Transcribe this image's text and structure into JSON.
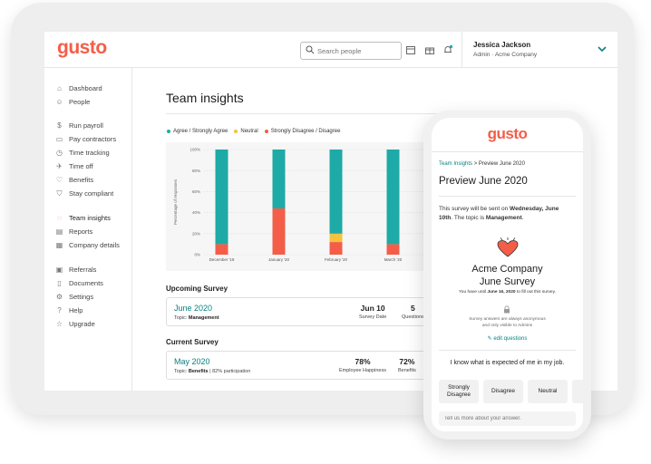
{
  "app": {
    "logo": "gusto",
    "search": {
      "placeholder": "Search people"
    },
    "user": {
      "name": "Jessica Jackson",
      "subtitle": "Admin · Acme Company"
    }
  },
  "sidebar": {
    "items": [
      {
        "label": "Dashboard",
        "icon": "home-icon"
      },
      {
        "label": "People",
        "icon": "people-icon"
      },
      {
        "label": "Run payroll",
        "icon": "dollar-icon"
      },
      {
        "label": "Pay contractors",
        "icon": "card-icon"
      },
      {
        "label": "Time tracking",
        "icon": "clock-icon"
      },
      {
        "label": "Time off",
        "icon": "plane-icon"
      },
      {
        "label": "Benefits",
        "icon": "heart-icon"
      },
      {
        "label": "Stay compliant",
        "icon": "shield-icon"
      },
      {
        "label": "Team insights",
        "icon": "chat-icon",
        "active": true
      },
      {
        "label": "Reports",
        "icon": "reports-icon"
      },
      {
        "label": "Company details",
        "icon": "building-icon"
      },
      {
        "label": "Referrals",
        "icon": "gift-icon"
      },
      {
        "label": "Documents",
        "icon": "document-icon"
      },
      {
        "label": "Settings",
        "icon": "gear-icon"
      },
      {
        "label": "Help",
        "icon": "help-icon"
      },
      {
        "label": "Upgrade",
        "icon": "star-icon"
      }
    ]
  },
  "main": {
    "title": "Team insights",
    "upcoming": {
      "section_title": "Upcoming Survey",
      "name": "June 2020",
      "topic_label": "Topic:",
      "topic": "Management",
      "stats": [
        {
          "value": "Jun 10",
          "label": "Survey Date"
        },
        {
          "value": "5",
          "label": "Questions"
        }
      ]
    },
    "current": {
      "section_title": "Current Survey",
      "name": "May 2020",
      "topic_label": "Topic:",
      "topic": "Benefits",
      "participation": "| 82% participation",
      "stats": [
        {
          "value": "78%",
          "label": "Employee Happiness"
        },
        {
          "value": "72%",
          "label": "Benefits"
        }
      ]
    }
  },
  "chart_data": {
    "type": "bar",
    "stacked": true,
    "categories": [
      "December '19",
      "January '20",
      "February '20",
      "March '20"
    ],
    "series": [
      {
        "name": "Strongly Disagree / Disagree",
        "color": "#f45d48",
        "values": [
          10,
          44,
          12,
          10
        ]
      },
      {
        "name": "Neutral",
        "color": "#f4c23d",
        "values": [
          0,
          0,
          8,
          0
        ]
      },
      {
        "name": "Agree / Strongly Agree",
        "color": "#1eaaa6",
        "values": [
          90,
          56,
          80,
          90
        ]
      }
    ],
    "legend_order": [
      "Agree / Strongly Agree",
      "Neutral",
      "Strongly Disagree / Disagree"
    ],
    "ylabel": "Percentage of responses",
    "ylim": [
      0,
      100
    ],
    "yticks": [
      "0%",
      "20%",
      "40%",
      "60%",
      "80%",
      "100%"
    ],
    "grid": true,
    "legend": "top-left"
  },
  "phone": {
    "logo": "gusto",
    "breadcrumb_link": "Team Insights",
    "breadcrumb_sep": ">",
    "breadcrumb_current": "Preview June 2020",
    "title": "Preview June 2020",
    "desc_pre": "This survey will be sent on ",
    "desc_date": "Wednesday, June 10th",
    "desc_mid": ". The topic is ",
    "desc_topic": "Management",
    "desc_end": ".",
    "company_line1": "Acme Company",
    "company_line2": "June Survey",
    "until_pre": "You have until ",
    "until_date": "June 16, 2020",
    "until_post": " to fill out this survey.",
    "anon_line1": "Survey answers are always anonymous",
    "anon_line2": "and only visible to Admins",
    "edit_label": "edit questions",
    "question": "I know what is expected of me in my job.",
    "options": [
      "Strongly Disagree",
      "Disagree",
      "Neutral"
    ],
    "answer_placeholder": "Tell us more about your answer."
  },
  "colors": {
    "brand": "#f45d48",
    "teal": "#0a8080",
    "agree": "#1eaaa6",
    "neutral": "#f4c23d"
  }
}
